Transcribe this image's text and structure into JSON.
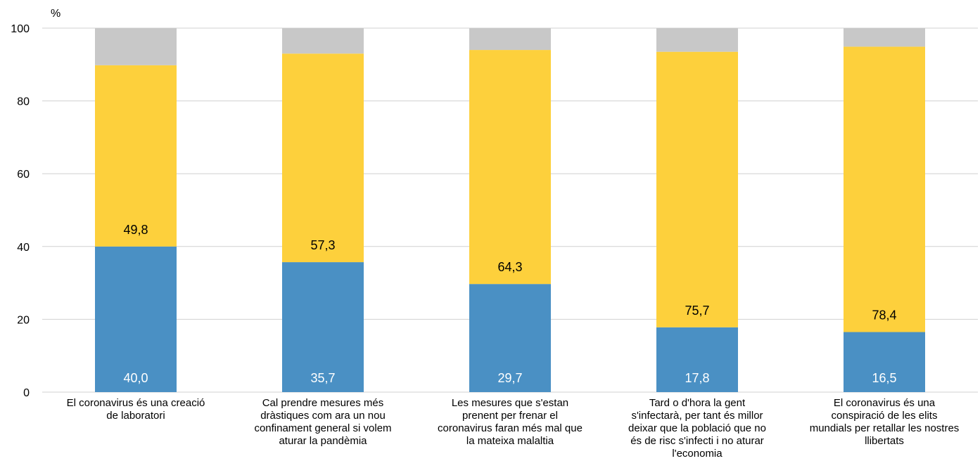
{
  "chart_data": {
    "type": "bar",
    "stacked": true,
    "ylabel": "%",
    "ylim": [
      0,
      100
    ],
    "yticks": [
      0,
      20,
      40,
      60,
      80,
      100
    ],
    "grid": true,
    "categories": [
      [
        "El coronavirus és una creació",
        "de laboratori"
      ],
      [
        "Cal prendre mesures més",
        "dràstiques com ara un nou",
        "confinament general si volem",
        "aturar la pandèmia"
      ],
      [
        "Les mesures que s'estan",
        "prenent per frenar el",
        "coronavirus faran més mal que",
        "la mateixa malaltia"
      ],
      [
        "Tard o d'hora la gent",
        "s'infectarà, per tant és millor",
        "deixar que la població que no",
        "és de risc s'infecti i no aturar",
        "l'economia"
      ],
      [
        "El coronavirus és una",
        "conspiració de les elits",
        "mundials per retallar les nostres",
        "llibertats"
      ]
    ],
    "series": [
      {
        "values": [
          40.0,
          35.7,
          29.7,
          17.8,
          16.5
        ],
        "labels": [
          "40,0",
          "35,7",
          "29,7",
          "17,8",
          "16,5"
        ],
        "color": "#4a90c4",
        "label_color": "#ffffff"
      },
      {
        "values": [
          49.8,
          57.3,
          64.3,
          75.7,
          78.4
        ],
        "labels": [
          "49,8",
          "57,3",
          "64,3",
          "75,7",
          "78,4"
        ],
        "color": "#fdd03c",
        "label_color": "#000000"
      },
      {
        "values": [
          10.2,
          7.0,
          6.0,
          6.5,
          5.1
        ],
        "labels": [],
        "color": "#c8c8c8",
        "label_color": "#000000"
      }
    ],
    "grid_color": "#d0d0d0"
  }
}
